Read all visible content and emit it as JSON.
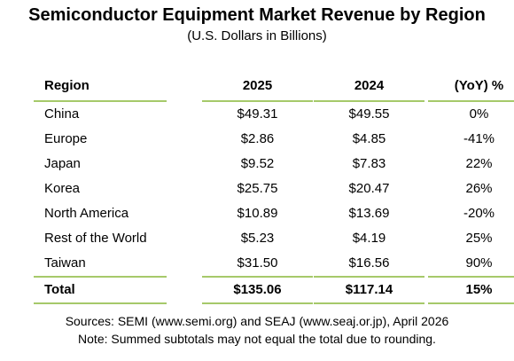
{
  "colors": {
    "rule_green": "#a6c96a",
    "text": "#000000",
    "background": "#ffffff"
  },
  "title": "Semiconductor Equipment Market Revenue by Region",
  "subtitle": "(U.S. Dollars in Billions)",
  "chart_data": {
    "type": "table",
    "title": "Semiconductor Equipment Market Revenue by Region",
    "subtitle": "(U.S. Dollars in Billions)",
    "columns": [
      "Region",
      "2025",
      "2024",
      "(YoY) %"
    ],
    "rows": [
      {
        "region": "China",
        "v2025": "$49.31",
        "v2024": "$49.55",
        "yoy": "0%"
      },
      {
        "region": "Europe",
        "v2025": "$2.86",
        "v2024": "$4.85",
        "yoy": "-41%"
      },
      {
        "region": "Japan",
        "v2025": "$9.52",
        "v2024": "$7.83",
        "yoy": "22%"
      },
      {
        "region": "Korea",
        "v2025": "$25.75",
        "v2024": "$20.47",
        "yoy": "26%"
      },
      {
        "region": "North America",
        "v2025": "$10.89",
        "v2024": "$13.69",
        "yoy": "-20%"
      },
      {
        "region": "Rest of the World",
        "v2025": "$5.23",
        "v2024": "$4.19",
        "yoy": "25%"
      },
      {
        "region": "Taiwan",
        "v2025": "$31.50",
        "v2024": "$16.56",
        "yoy": "90%"
      }
    ],
    "total": {
      "region": "Total",
      "v2025": "$135.06",
      "v2024": "$117.14",
      "yoy": "15%"
    }
  },
  "notes": {
    "sources": "Sources: SEMI (www.semi.org) and SEAJ (www.seaj.or.jp), April 2026",
    "note": "Note: Summed subtotals may not equal the total due to rounding."
  }
}
